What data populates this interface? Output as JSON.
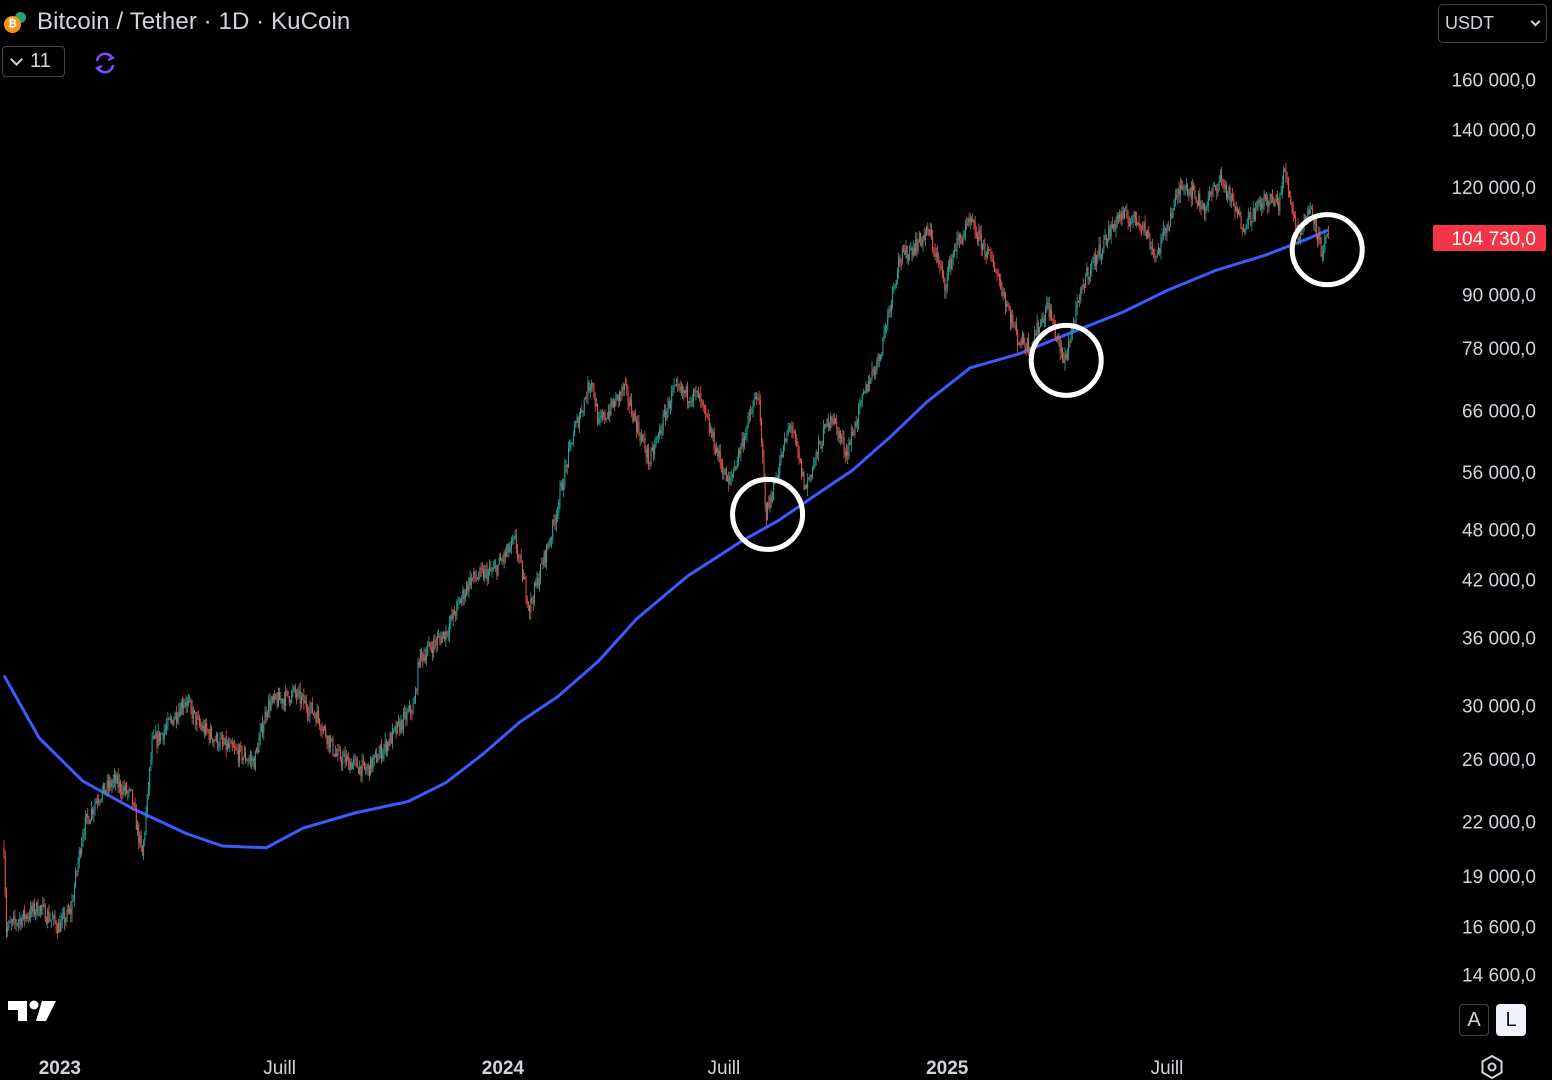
{
  "header": {
    "title": "Bitcoin / Tether · 1D · KuCoin",
    "indicator_count": "11",
    "currency": "USDT"
  },
  "icons": {
    "coin": "bitcoin-tether-coin-icon",
    "sync": "sync-icon",
    "logo": "tradingview-logo",
    "settings": "settings-gear-icon"
  },
  "scale_buttons": {
    "auto": "A",
    "log": "L"
  },
  "colors": {
    "background": "#000000",
    "up": "#26a69a",
    "down": "#ef5350",
    "ma": "#3d5afe",
    "last_price_bg": "#f23645",
    "circle": "#ffffff"
  },
  "chart_data": {
    "type": "candlestick",
    "scale": "log",
    "ylim": [
      13500,
      175000
    ],
    "y_ticks": [
      {
        "value": 160000,
        "label": "160 000,0"
      },
      {
        "value": 140000,
        "label": "140 000,0"
      },
      {
        "value": 120000,
        "label": "120 000,0"
      },
      {
        "value": 90000,
        "label": "90 000,0"
      },
      {
        "value": 78000,
        "label": "78 000,0"
      },
      {
        "value": 66000,
        "label": "66 000,0"
      },
      {
        "value": 56000,
        "label": "56 000,0"
      },
      {
        "value": 48000,
        "label": "48 000,0"
      },
      {
        "value": 42000,
        "label": "42 000,0"
      },
      {
        "value": 36000,
        "label": "36 000,0"
      },
      {
        "value": 30000,
        "label": "30 000,0"
      },
      {
        "value": 26000,
        "label": "26 000,0"
      },
      {
        "value": 22000,
        "label": "22 000,0"
      },
      {
        "value": 19000,
        "label": "19 000,0"
      },
      {
        "value": 16600,
        "label": "16 600,0"
      },
      {
        "value": 14600,
        "label": "14 600,0"
      }
    ],
    "x_range": [
      "2022-11-16",
      "2025-11-23"
    ],
    "x_ticks": [
      {
        "date": "2023-01-01",
        "label": "2023",
        "bold": true
      },
      {
        "date": "2023-07-01",
        "label": "Juill",
        "bold": false
      },
      {
        "date": "2024-01-01",
        "label": "2024",
        "bold": true
      },
      {
        "date": "2024-07-01",
        "label": "Juill",
        "bold": false
      },
      {
        "date": "2025-01-01",
        "label": "2025",
        "bold": true
      },
      {
        "date": "2025-07-01",
        "label": "Juill",
        "bold": false
      }
    ],
    "last_price": {
      "value": 104730,
      "label": "104 730,0"
    },
    "price_path": [
      [
        "2022-11-16",
        20500
      ],
      [
        "2022-11-18",
        16500
      ],
      [
        "2022-12-01",
        17000
      ],
      [
        "2022-12-15",
        17500
      ],
      [
        "2022-12-31",
        16600
      ],
      [
        "2023-01-10",
        17300
      ],
      [
        "2023-01-20",
        21500
      ],
      [
        "2023-02-01",
        23500
      ],
      [
        "2023-02-15",
        24500
      ],
      [
        "2023-03-01",
        23500
      ],
      [
        "2023-03-10",
        20000
      ],
      [
        "2023-03-18",
        27000
      ],
      [
        "2023-04-01",
        28500
      ],
      [
        "2023-04-14",
        30500
      ],
      [
        "2023-04-25",
        28500
      ],
      [
        "2023-05-15",
        27000
      ],
      [
        "2023-06-10",
        25800
      ],
      [
        "2023-06-21",
        30000
      ],
      [
        "2023-07-13",
        31000
      ],
      [
        "2023-08-01",
        29200
      ],
      [
        "2023-08-17",
        26200
      ],
      [
        "2023-09-11",
        25200
      ],
      [
        "2023-10-01",
        27500
      ],
      [
        "2023-10-20",
        30000
      ],
      [
        "2023-10-24",
        34000
      ],
      [
        "2023-11-15",
        36500
      ],
      [
        "2023-12-05",
        42000
      ],
      [
        "2023-12-25",
        43000
      ],
      [
        "2024-01-11",
        46500
      ],
      [
        "2024-01-23",
        39000
      ],
      [
        "2024-02-10",
        47500
      ],
      [
        "2024-02-28",
        62000
      ],
      [
        "2024-03-14",
        72000
      ],
      [
        "2024-03-20",
        63500
      ],
      [
        "2024-04-10",
        70000
      ],
      [
        "2024-05-01",
        57500
      ],
      [
        "2024-05-20",
        69500
      ],
      [
        "2024-06-10",
        68500
      ],
      [
        "2024-07-05",
        54000
      ],
      [
        "2024-07-29",
        69500
      ],
      [
        "2024-08-05",
        50000
      ],
      [
        "2024-08-25",
        64000
      ],
      [
        "2024-09-06",
        53500
      ],
      [
        "2024-09-27",
        65500
      ],
      [
        "2024-10-10",
        59000
      ],
      [
        "2024-10-29",
        72000
      ],
      [
        "2024-11-06",
        76000
      ],
      [
        "2024-11-22",
        98500
      ],
      [
        "2024-12-17",
        106500
      ],
      [
        "2024-12-30",
        92500
      ],
      [
        "2025-01-07",
        102000
      ],
      [
        "2025-01-20",
        109000
      ],
      [
        "2025-02-10",
        96500
      ],
      [
        "2025-02-28",
        80000
      ],
      [
        "2025-03-10",
        78500
      ],
      [
        "2025-03-25",
        87500
      ],
      [
        "2025-04-07",
        75000
      ],
      [
        "2025-04-25",
        94500
      ],
      [
        "2025-05-22",
        111000
      ],
      [
        "2025-06-10",
        109500
      ],
      [
        "2025-06-22",
        99500
      ],
      [
        "2025-07-14",
        122000
      ],
      [
        "2025-08-01",
        113500
      ],
      [
        "2025-08-14",
        123000
      ],
      [
        "2025-09-01",
        108500
      ],
      [
        "2025-09-20",
        116000
      ],
      [
        "2025-10-01",
        115000
      ],
      [
        "2025-10-06",
        125500
      ],
      [
        "2025-10-17",
        105500
      ],
      [
        "2025-10-28",
        114000
      ],
      [
        "2025-11-05",
        101500
      ],
      [
        "2025-11-11",
        104730
      ]
    ],
    "moving_average": [
      [
        "2022-11-16",
        32500
      ],
      [
        "2022-12-15",
        27500
      ],
      [
        "2023-01-20",
        24500
      ],
      [
        "2023-03-01",
        22800
      ],
      [
        "2023-04-15",
        21300
      ],
      [
        "2023-05-15",
        20600
      ],
      [
        "2023-06-20",
        20500
      ],
      [
        "2023-07-20",
        21600
      ],
      [
        "2023-09-01",
        22500
      ],
      [
        "2023-10-15",
        23200
      ],
      [
        "2023-11-15",
        24400
      ],
      [
        "2023-12-15",
        26300
      ],
      [
        "2024-01-15",
        28700
      ],
      [
        "2024-02-15",
        30700
      ],
      [
        "2024-03-20",
        33800
      ],
      [
        "2024-04-20",
        37800
      ],
      [
        "2024-06-01",
        42400
      ],
      [
        "2024-07-15",
        46500
      ],
      [
        "2024-08-15",
        49200
      ],
      [
        "2024-09-15",
        52700
      ],
      [
        "2024-10-15",
        56300
      ],
      [
        "2024-11-15",
        61500
      ],
      [
        "2024-12-15",
        67500
      ],
      [
        "2025-01-20",
        74000
      ],
      [
        "2025-03-01",
        76800
      ],
      [
        "2025-04-15",
        81500
      ],
      [
        "2025-05-25",
        85800
      ],
      [
        "2025-07-01",
        91000
      ],
      [
        "2025-08-10",
        96000
      ],
      [
        "2025-09-20",
        100000
      ],
      [
        "2025-10-25",
        104500
      ],
      [
        "2025-11-11",
        107000
      ]
    ],
    "highlight_circles": [
      {
        "date": "2024-08-06",
        "value": 50000
      },
      {
        "date": "2025-04-09",
        "value": 75500
      },
      {
        "date": "2025-11-10",
        "value": 101500
      }
    ]
  }
}
